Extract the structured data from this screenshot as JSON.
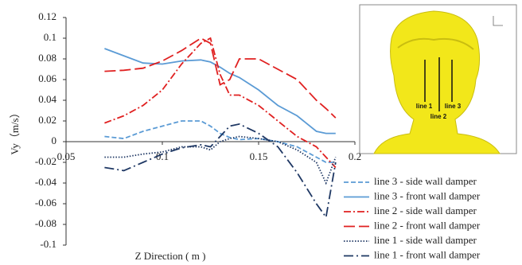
{
  "chart_data": {
    "type": "line",
    "xlabel": "Z Direction ( m )",
    "ylabel": "Vy（m/s）",
    "x": [
      0.07,
      0.08,
      0.09,
      0.1,
      0.11,
      0.12,
      0.125,
      0.13,
      0.135,
      0.14,
      0.15,
      0.16,
      0.17,
      0.18,
      0.185,
      0.19
    ],
    "series": [
      {
        "name": "line 3 - side wall damper",
        "color": "#5b9bd5",
        "style": "dashed",
        "values": [
          0.005,
          0.003,
          0.01,
          0.015,
          0.02,
          0.02,
          0.015,
          0.008,
          0.004,
          0.002,
          0.003,
          0,
          -0.005,
          -0.015,
          -0.02,
          -0.02
        ]
      },
      {
        "name": "line 3 - front wall damper",
        "color": "#5b9bd5",
        "style": "solid",
        "values": [
          0.09,
          0.083,
          0.076,
          0.075,
          0.078,
          0.079,
          0.077,
          0.072,
          0.066,
          0.062,
          0.05,
          0.035,
          0.025,
          0.01,
          0.008,
          0.008
        ]
      },
      {
        "name": "line 2 - side wall damper",
        "color": "#e02020",
        "style": "dashdot",
        "values": [
          0.018,
          0.025,
          0.035,
          0.05,
          0.075,
          0.095,
          0.1,
          0.065,
          0.045,
          0.045,
          0.035,
          0.02,
          0.005,
          -0.005,
          -0.015,
          -0.025
        ]
      },
      {
        "name": "line 2 - front wall damper",
        "color": "#e02020",
        "style": "longdash",
        "values": [
          0.068,
          0.069,
          0.071,
          0.078,
          0.088,
          0.1,
          0.095,
          0.055,
          0.06,
          0.08,
          0.08,
          0.07,
          0.06,
          0.04,
          0.032,
          0.023
        ]
      },
      {
        "name": "line 1 - side wall damper",
        "color": "#1f3864",
        "style": "dotted",
        "values": [
          -0.015,
          -0.015,
          -0.012,
          -0.01,
          -0.005,
          -0.005,
          -0.008,
          0,
          0.003,
          0.005,
          0.003,
          0,
          -0.008,
          -0.02,
          -0.04,
          -0.015
        ]
      },
      {
        "name": "line 1 - front wall damper",
        "color": "#1f3864",
        "style": "longdashdot",
        "values": [
          -0.025,
          -0.028,
          -0.02,
          -0.012,
          -0.006,
          -0.003,
          -0.005,
          0.005,
          0.015,
          0.017,
          0.008,
          -0.005,
          -0.03,
          -0.06,
          -0.073,
          -0.02
        ]
      }
    ],
    "xlim": [
      0.05,
      0.2
    ],
    "xticks": [
      0.05,
      0.1,
      0.15,
      0.2
    ],
    "ylim": [
      -0.1,
      0.12
    ],
    "yticks": [
      0.12,
      0.1,
      0.08,
      0.06,
      0.04,
      0.02,
      0,
      -0.02,
      -0.04,
      -0.06,
      -0.08,
      -0.1
    ],
    "legend": "lower right"
  },
  "inset": {
    "labels": [
      "line 1",
      "line 3",
      "line 2"
    ]
  }
}
